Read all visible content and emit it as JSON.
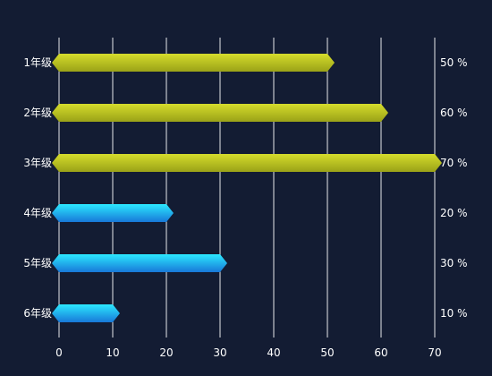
{
  "chart_data": {
    "type": "bar",
    "orientation": "horizontal",
    "categories": [
      "1年级",
      "2年级",
      "3年级",
      "4年级",
      "5年级",
      "6年级"
    ],
    "values": [
      50,
      60,
      70,
      20,
      30,
      10
    ],
    "value_labels": [
      "50 %",
      "60 %",
      "70 %",
      "20 %",
      "30 %",
      "10 %"
    ],
    "xlim": [
      0,
      70
    ],
    "xticks": [
      0,
      10,
      20,
      30,
      40,
      50,
      60,
      70
    ],
    "grid": "vertical",
    "colors": {
      "background": "#131c33",
      "high_bar_top": "#d5dc2c",
      "high_bar_bottom": "#9aa218",
      "low_bar_top": "#2ce8ff",
      "low_bar_bottom": "#1878d8",
      "grid": "#ffffff",
      "text": "#ffffff"
    },
    "bar_color_rule": "values >= 50 use yellow-green gradient, others use cyan-blue gradient"
  }
}
